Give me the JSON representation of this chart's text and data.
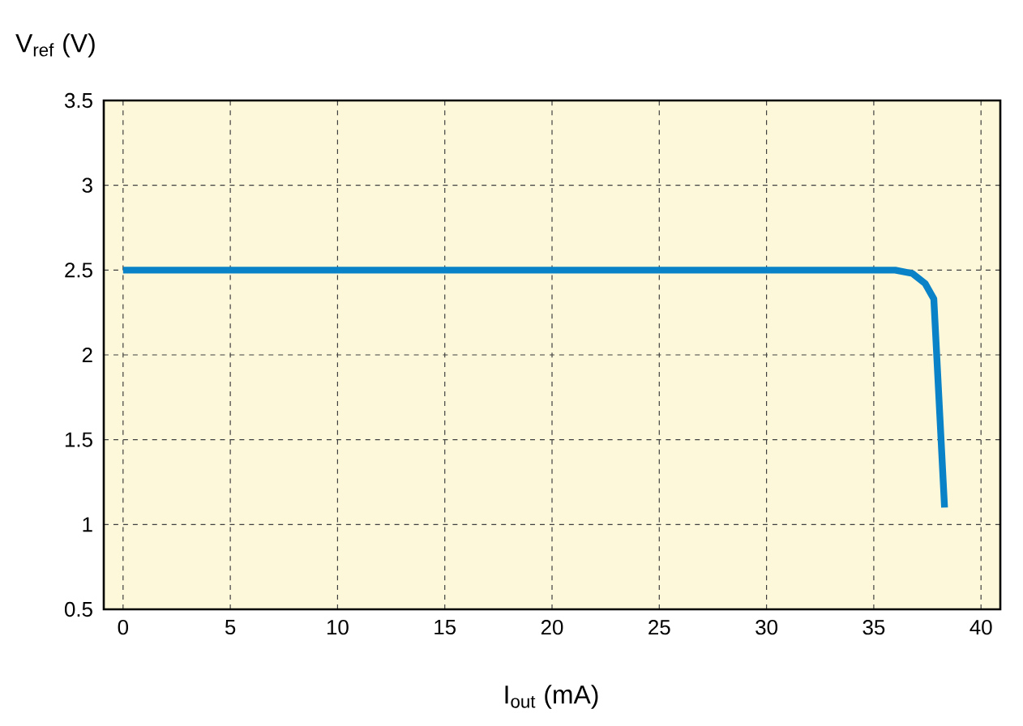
{
  "chart_data": {
    "type": "line",
    "xlabel": "I$_{out}$ (mA)",
    "ylabel": "V$_{ref}$ (V)",
    "series": [
      {
        "color": "#0a82c8",
        "x": [
          0,
          36,
          36.8,
          37.4,
          37.8,
          38.3
        ],
        "values": [
          2.5,
          2.5,
          2.48,
          2.42,
          2.33,
          1.1
        ]
      }
    ],
    "xlim": [
      -0.9,
      40.9
    ],
    "ylim": [
      0.5,
      3.5
    ],
    "xticks": [
      0,
      5,
      10,
      15,
      20,
      25,
      30,
      35,
      40
    ],
    "yticks": [
      0.5,
      1,
      1.5,
      2,
      2.5,
      3,
      3.5
    ],
    "grid": true
  }
}
